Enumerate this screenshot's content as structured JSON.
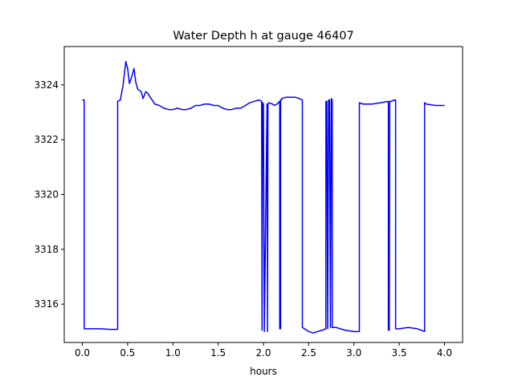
{
  "chart_data": {
    "type": "line",
    "title": "Water Depth h at gauge 46407",
    "xlabel": "hours",
    "ylabel": "",
    "xlim": [
      -0.2,
      4.2
    ],
    "ylim": [
      3314.6,
      3325.4
    ],
    "xticks": [
      0.0,
      0.5,
      1.0,
      1.5,
      2.0,
      2.5,
      3.0,
      3.5,
      4.0
    ],
    "xtick_labels": [
      "0.0",
      "0.5",
      "1.0",
      "1.5",
      "2.0",
      "2.5",
      "3.0",
      "3.5",
      "4.0"
    ],
    "yticks": [
      3316,
      3318,
      3320,
      3322,
      3324
    ],
    "ytick_labels": [
      "3316",
      "3318",
      "3320",
      "3322",
      "3324"
    ],
    "grid": false,
    "series": [
      {
        "color": "#0000ff",
        "x": [
          0.0,
          0.02,
          0.02,
          0.1,
          0.2,
          0.3,
          0.39,
          0.39,
          0.42,
          0.45,
          0.48,
          0.5,
          0.52,
          0.55,
          0.57,
          0.59,
          0.61,
          0.63,
          0.65,
          0.67,
          0.7,
          0.72,
          0.75,
          0.8,
          0.85,
          0.9,
          0.95,
          1.0,
          1.05,
          1.1,
          1.15,
          1.2,
          1.25,
          1.3,
          1.35,
          1.4,
          1.45,
          1.5,
          1.55,
          1.6,
          1.65,
          1.7,
          1.75,
          1.8,
          1.85,
          1.9,
          1.95,
          1.98,
          1.985,
          1.99,
          2.0,
          2.01,
          2.04,
          2.045,
          2.05,
          2.06,
          2.1,
          2.12,
          2.15,
          2.18,
          2.18,
          2.19,
          2.19,
          2.2,
          2.2,
          2.25,
          2.3,
          2.35,
          2.4,
          2.43,
          2.43,
          2.5,
          2.55,
          2.6,
          2.65,
          2.69,
          2.69,
          2.7,
          2.71,
          2.72,
          2.73,
          2.74,
          2.75,
          2.76,
          2.76,
          2.8,
          2.9,
          3.0,
          3.06,
          3.06,
          3.1,
          3.2,
          3.3,
          3.38,
          3.38,
          3.39,
          3.395,
          3.4,
          3.41,
          3.45,
          3.46,
          3.46,
          3.5,
          3.6,
          3.7,
          3.78,
          3.78,
          3.8,
          3.9,
          4.0
        ],
        "y": [
          3323.45,
          3323.45,
          3315.1,
          3315.1,
          3315.1,
          3315.08,
          3315.08,
          3323.4,
          3323.45,
          3324.0,
          3324.85,
          3324.6,
          3324.05,
          3324.35,
          3324.6,
          3324.1,
          3323.85,
          3323.8,
          3323.75,
          3323.5,
          3323.75,
          3323.7,
          3323.55,
          3323.3,
          3323.25,
          3323.15,
          3323.1,
          3323.1,
          3323.15,
          3323.1,
          3323.1,
          3323.15,
          3323.25,
          3323.25,
          3323.3,
          3323.3,
          3323.25,
          3323.25,
          3323.15,
          3323.1,
          3323.1,
          3323.15,
          3323.15,
          3323.25,
          3323.35,
          3323.4,
          3323.45,
          3323.4,
          3315.05,
          3323.35,
          3323.3,
          3315.0,
          3323.3,
          3315.0,
          3323.3,
          3323.35,
          3323.3,
          3323.25,
          3323.3,
          3323.4,
          3315.1,
          3315.1,
          3323.45,
          3323.45,
          3323.5,
          3323.55,
          3323.55,
          3323.55,
          3323.5,
          3323.45,
          3315.15,
          3315.0,
          3314.95,
          3315.0,
          3315.05,
          3315.1,
          3323.4,
          3323.4,
          3315.1,
          3323.45,
          3323.45,
          3315.15,
          3323.5,
          3323.45,
          3315.15,
          3315.15,
          3315.05,
          3315.0,
          3315.0,
          3323.35,
          3323.3,
          3323.3,
          3323.35,
          3323.4,
          3315.05,
          3315.05,
          3323.4,
          3323.4,
          3323.4,
          3323.45,
          3323.45,
          3315.1,
          3315.1,
          3315.15,
          3315.1,
          3315.0,
          3323.35,
          3323.3,
          3323.25,
          3323.25
        ]
      }
    ]
  }
}
